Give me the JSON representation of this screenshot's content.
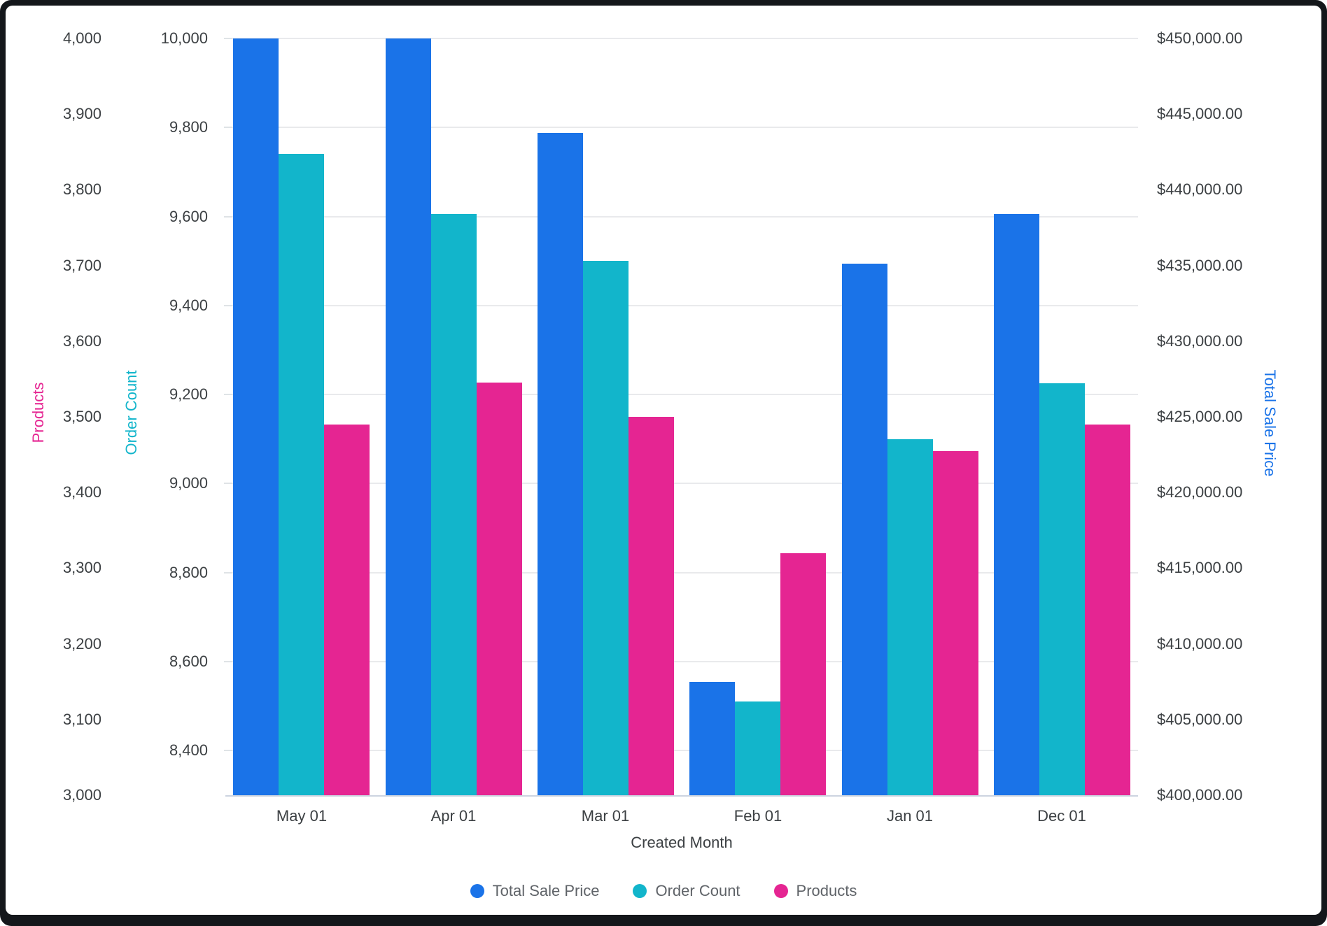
{
  "chart_data": {
    "type": "bar",
    "x_title": "Created Month",
    "categories": [
      "May 01",
      "Apr 01",
      "Mar 01",
      "Feb 01",
      "Jan 01",
      "Dec 01"
    ],
    "series": [
      {
        "name": "Total Sale Price",
        "axis": "price",
        "color": "#1a73e8",
        "values": [
          450000,
          450000,
          443750,
          407500,
          435100,
          438400
        ]
      },
      {
        "name": "Order Count",
        "axis": "orders",
        "color": "#12b5cb",
        "values": [
          9740,
          9605,
          9500,
          8510,
          9100,
          9225
        ]
      },
      {
        "name": "Products",
        "axis": "products",
        "color": "#e52592",
        "values": [
          3490,
          3545,
          3500,
          3320,
          3455,
          3490
        ]
      }
    ],
    "axes": {
      "products": {
        "title": "Products",
        "color": "#e52592",
        "min": 3000,
        "max": 4000,
        "ticks": [
          "4,000",
          "3,900",
          "3,800",
          "3,700",
          "3,600",
          "3,500",
          "3,400",
          "3,300",
          "3,200",
          "3,100",
          "3,000"
        ]
      },
      "orders": {
        "title": "Order Count",
        "color": "#12b5cb",
        "min": 8300,
        "max": 10000,
        "ticks": [
          "10,000",
          "9,800",
          "9,600",
          "9,400",
          "9,200",
          "9,000",
          "8,800",
          "8,600",
          "8,400"
        ],
        "tick_values": [
          10000,
          9800,
          9600,
          9400,
          9200,
          9000,
          8800,
          8600,
          8400
        ]
      },
      "price": {
        "title": "Total Sale Price",
        "color": "#1a73e8",
        "min": 400000,
        "max": 450000,
        "ticks": [
          "$450,000.00",
          "$445,000.00",
          "$440,000.00",
          "$435,000.00",
          "$430,000.00",
          "$425,000.00",
          "$420,000.00",
          "$415,000.00",
          "$410,000.00",
          "$405,000.00",
          "$400,000.00"
        ]
      }
    },
    "legend": [
      "Total Sale Price",
      "Order Count",
      "Products"
    ],
    "grid_on": true,
    "legend_position": "bottom"
  }
}
